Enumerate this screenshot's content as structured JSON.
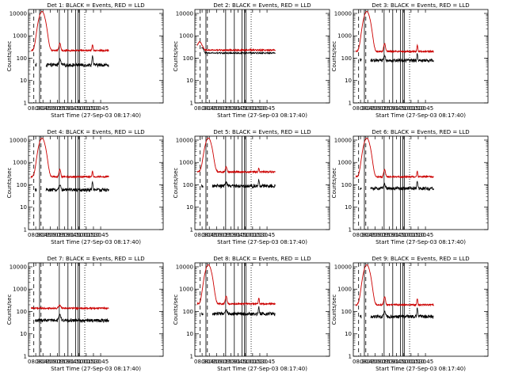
{
  "figure": {
    "background": "#ffffff",
    "events_color": "#000000",
    "lld_color": "#cc0000"
  },
  "chart_data": [
    {
      "type": "line",
      "title": "Det 1: BLACK = Events, RED = LLD",
      "xlabel": "Start Time (27-Sep-03 08:17:40)",
      "ylabel": "Counts/sec",
      "yscale": "log",
      "ylim": [
        1,
        15000
      ],
      "xlim": [
        495,
        775
      ],
      "x_ticks": [
        {
          "v": 510,
          "label": "08:30"
        },
        {
          "v": 525,
          "label": "08:45"
        },
        {
          "v": 540,
          "label": "09:00"
        },
        {
          "v": 555,
          "label": "09:15"
        },
        {
          "v": 570,
          "label": "09:30"
        },
        {
          "v": 585,
          "label": "09:45"
        },
        {
          "v": 600,
          "label": "10:00"
        },
        {
          "v": 615,
          "label": "10:15"
        },
        {
          "v": 630,
          "label": "10:30"
        },
        {
          "v": 645,
          "label": "10:45"
        }
      ],
      "y_ticks": [
        {
          "v": 1,
          "label": "1"
        },
        {
          "v": 10,
          "label": "10"
        },
        {
          "v": 100,
          "label": "100"
        },
        {
          "v": 1000,
          "label": "1000"
        },
        {
          "v": 10000,
          "label": "10000"
        }
      ],
      "flare": true,
      "markers": {
        "S": 506,
        "D": 521,
        "N": 559,
        "E": 629
      },
      "series": [
        {
          "name": "Events",
          "x": [
            503,
            506,
            510,
            514,
            518,
            522,
            526,
            530,
            534,
            538,
            542,
            546,
            550,
            554,
            558,
            562,
            566,
            570,
            574,
            578,
            582,
            586,
            590,
            594,
            598,
            602,
            606,
            610,
            614,
            618,
            622,
            626,
            630,
            634,
            638,
            642,
            646,
            650,
            654,
            658,
            662
          ],
          "y": [
            null,
            null,
            null,
            null,
            null,
            null,
            null,
            null,
            null,
            null,
            null,
            null,
            null,
            null,
            null,
            null,
            null,
            null,
            null,
            null,
            null,
            null,
            null,
            null,
            null,
            null,
            null,
            null,
            null,
            null,
            null,
            null,
            null,
            null,
            null,
            null,
            null,
            null,
            null,
            null,
            null
          ],
          "breaks": [
            506,
            512,
            530,
            600,
            629
          ]
        },
        {
          "name": "LLD",
          "x": [],
          "y": []
        }
      ]
    },
    {
      "type": "line",
      "title": "Det 2: BLACK = Events, RED = LLD",
      "xlabel": "Start Time (27-Sep-03 08:17:40)",
      "ylabel": "Counts/sec",
      "yscale": "log",
      "ylim": [
        1,
        15000
      ],
      "xlim": [
        495,
        775
      ],
      "x_ticks": [
        {
          "v": 510,
          "label": "08:30"
        },
        {
          "v": 525,
          "label": "08:45"
        },
        {
          "v": 540,
          "label": "09:00"
        },
        {
          "v": 555,
          "label": "09:15"
        },
        {
          "v": 570,
          "label": "09:30"
        },
        {
          "v": 585,
          "label": "09:45"
        },
        {
          "v": 600,
          "label": "10:00"
        },
        {
          "v": 615,
          "label": "10:15"
        },
        {
          "v": 630,
          "label": "10:30"
        },
        {
          "v": 645,
          "label": "10:45"
        }
      ],
      "y_ticks": [
        {
          "v": 1,
          "label": "1"
        },
        {
          "v": 10,
          "label": "10"
        },
        {
          "v": 100,
          "label": "100"
        },
        {
          "v": 1000,
          "label": "1000"
        },
        {
          "v": 10000,
          "label": "10000"
        }
      ],
      "flare": false,
      "markers": {
        "S": 506,
        "D": 521,
        "N": 559,
        "E": 629
      },
      "series": [
        {
          "name": "Events",
          "x": [],
          "y": []
        },
        {
          "name": "LLD",
          "x": [],
          "y": []
        }
      ]
    },
    {
      "type": "line",
      "title": "Det 3: BLACK = Events, RED = LLD",
      "xlabel": "Start Time (27-Sep-03 08:17:40)",
      "ylabel": "Counts/sec",
      "yscale": "log",
      "ylim": [
        1,
        15000
      ],
      "xlim": [
        495,
        775
      ],
      "x_ticks": [
        {
          "v": 510,
          "label": "08:30"
        },
        {
          "v": 525,
          "label": "08:45"
        },
        {
          "v": 540,
          "label": "09:00"
        },
        {
          "v": 555,
          "label": "09:15"
        },
        {
          "v": 570,
          "label": "09:30"
        },
        {
          "v": 585,
          "label": "09:45"
        },
        {
          "v": 600,
          "label": "10:00"
        },
        {
          "v": 615,
          "label": "10:15"
        },
        {
          "v": 630,
          "label": "10:30"
        },
        {
          "v": 645,
          "label": "10:45"
        }
      ],
      "y_ticks": [
        {
          "v": 1,
          "label": "1"
        },
        {
          "v": 10,
          "label": "10"
        },
        {
          "v": 100,
          "label": "100"
        },
        {
          "v": 1000,
          "label": "1000"
        },
        {
          "v": 10000,
          "label": "10000"
        }
      ],
      "flare": true,
      "markers": {
        "S": 506,
        "D": 521,
        "N": 559,
        "E": 629
      },
      "series": [
        {
          "name": "Events",
          "x": [],
          "y": []
        },
        {
          "name": "LLD",
          "x": [],
          "y": []
        }
      ]
    },
    {
      "type": "line",
      "title": "Det 4: BLACK = Events, RED = LLD",
      "xlabel": "Start Time (27-Sep-03 08:17:40)",
      "ylabel": "Counts/sec",
      "yscale": "log",
      "ylim": [
        1,
        15000
      ],
      "xlim": [
        495,
        775
      ],
      "x_ticks": [
        {
          "v": 510,
          "label": "08:30"
        },
        {
          "v": 525,
          "label": "08:45"
        },
        {
          "v": 540,
          "label": "09:00"
        },
        {
          "v": 555,
          "label": "09:15"
        },
        {
          "v": 570,
          "label": "09:30"
        },
        {
          "v": 585,
          "label": "09:45"
        },
        {
          "v": 600,
          "label": "10:00"
        },
        {
          "v": 615,
          "label": "10:15"
        },
        {
          "v": 630,
          "label": "10:30"
        },
        {
          "v": 645,
          "label": "10:45"
        }
      ],
      "y_ticks": [
        {
          "v": 1,
          "label": "1"
        },
        {
          "v": 10,
          "label": "10"
        },
        {
          "v": 100,
          "label": "100"
        },
        {
          "v": 1000,
          "label": "1000"
        },
        {
          "v": 10000,
          "label": "10000"
        }
      ],
      "flare": true,
      "markers": {
        "S": 506,
        "D": 521,
        "N": 559,
        "E": 629
      },
      "series": [
        {
          "name": "Events",
          "x": [],
          "y": []
        },
        {
          "name": "LLD",
          "x": [],
          "y": []
        }
      ]
    },
    {
      "type": "line",
      "title": "Det 5: BLACK = Events, RED = LLD",
      "xlabel": "Start Time (27-Sep-03 08:17:40)",
      "ylabel": "Counts/sec",
      "yscale": "log",
      "ylim": [
        1,
        15000
      ],
      "xlim": [
        495,
        775
      ],
      "x_ticks": [
        {
          "v": 510,
          "label": "08:30"
        },
        {
          "v": 525,
          "label": "08:45"
        },
        {
          "v": 540,
          "label": "09:00"
        },
        {
          "v": 555,
          "label": "09:15"
        },
        {
          "v": 570,
          "label": "09:30"
        },
        {
          "v": 585,
          "label": "09:45"
        },
        {
          "v": 600,
          "label": "10:00"
        },
        {
          "v": 615,
          "label": "10:15"
        },
        {
          "v": 630,
          "label": "10:30"
        },
        {
          "v": 645,
          "label": "10:45"
        }
      ],
      "y_ticks": [
        {
          "v": 1,
          "label": "1"
        },
        {
          "v": 10,
          "label": "10"
        },
        {
          "v": 100,
          "label": "100"
        },
        {
          "v": 1000,
          "label": "1000"
        },
        {
          "v": 10000,
          "label": "10000"
        }
      ],
      "flare": true,
      "markers": {
        "S": 506,
        "D": 521,
        "N": 559,
        "E": 629
      },
      "series": [
        {
          "name": "Events",
          "x": [],
          "y": []
        },
        {
          "name": "LLD",
          "x": [],
          "y": []
        }
      ]
    },
    {
      "type": "line",
      "title": "Det 6: BLACK = Events, RED = LLD",
      "xlabel": "Start Time (27-Sep-03 08:17:40)",
      "ylabel": "Counts/sec",
      "yscale": "log",
      "ylim": [
        1,
        15000
      ],
      "xlim": [
        495,
        775
      ],
      "x_ticks": [
        {
          "v": 510,
          "label": "08:30"
        },
        {
          "v": 525,
          "label": "08:45"
        },
        {
          "v": 540,
          "label": "09:00"
        },
        {
          "v": 555,
          "label": "09:15"
        },
        {
          "v": 570,
          "label": "09:30"
        },
        {
          "v": 585,
          "label": "09:45"
        },
        {
          "v": 600,
          "label": "10:00"
        },
        {
          "v": 615,
          "label": "10:15"
        },
        {
          "v": 630,
          "label": "10:30"
        },
        {
          "v": 645,
          "label": "10:45"
        }
      ],
      "y_ticks": [
        {
          "v": 1,
          "label": "1"
        },
        {
          "v": 10,
          "label": "10"
        },
        {
          "v": 100,
          "label": "100"
        },
        {
          "v": 1000,
          "label": "1000"
        },
        {
          "v": 10000,
          "label": "10000"
        }
      ],
      "flare": true,
      "markers": {
        "S": 506,
        "D": 521,
        "N": 559,
        "E": 629
      },
      "series": [
        {
          "name": "Events",
          "x": [],
          "y": []
        },
        {
          "name": "LLD",
          "x": [],
          "y": []
        }
      ]
    },
    {
      "type": "line",
      "title": "Det 7: BLACK = Events, RED = LLD",
      "xlabel": "Start Time (27-Sep-03 08:17:40)",
      "ylabel": "Counts/sec",
      "yscale": "log",
      "ylim": [
        1,
        15000
      ],
      "xlim": [
        495,
        775
      ],
      "x_ticks": [
        {
          "v": 510,
          "label": "08:30"
        },
        {
          "v": 525,
          "label": "08:45"
        },
        {
          "v": 540,
          "label": "09:00"
        },
        {
          "v": 555,
          "label": "09:15"
        },
        {
          "v": 570,
          "label": "09:30"
        },
        {
          "v": 585,
          "label": "09:45"
        },
        {
          "v": 600,
          "label": "10:00"
        },
        {
          "v": 615,
          "label": "10:15"
        },
        {
          "v": 630,
          "label": "10:30"
        },
        {
          "v": 645,
          "label": "10:45"
        }
      ],
      "y_ticks": [
        {
          "v": 1,
          "label": "1"
        },
        {
          "v": 10,
          "label": "10"
        },
        {
          "v": 100,
          "label": "100"
        },
        {
          "v": 1000,
          "label": "1000"
        },
        {
          "v": 10000,
          "label": "10000"
        }
      ],
      "flare": false,
      "markers": {
        "S": 506,
        "D": 521,
        "N": 559,
        "E": 629
      },
      "series": [
        {
          "name": "Events",
          "x": [],
          "y": []
        },
        {
          "name": "LLD",
          "x": [],
          "y": []
        }
      ]
    },
    {
      "type": "line",
      "title": "Det 8: BLACK = Events, RED = LLD",
      "xlabel": "Start Time (27-Sep-03 08:17:40)",
      "ylabel": "Counts/sec",
      "yscale": "log",
      "ylim": [
        1,
        15000
      ],
      "xlim": [
        495,
        775
      ],
      "x_ticks": [
        {
          "v": 510,
          "label": "08:30"
        },
        {
          "v": 525,
          "label": "08:45"
        },
        {
          "v": 540,
          "label": "09:00"
        },
        {
          "v": 555,
          "label": "09:15"
        },
        {
          "v": 570,
          "label": "09:30"
        },
        {
          "v": 585,
          "label": "09:45"
        },
        {
          "v": 600,
          "label": "10:00"
        },
        {
          "v": 615,
          "label": "10:15"
        },
        {
          "v": 630,
          "label": "10:30"
        },
        {
          "v": 645,
          "label": "10:45"
        }
      ],
      "y_ticks": [
        {
          "v": 1,
          "label": "1"
        },
        {
          "v": 10,
          "label": "10"
        },
        {
          "v": 100,
          "label": "100"
        },
        {
          "v": 1000,
          "label": "1000"
        },
        {
          "v": 10000,
          "label": "10000"
        }
      ],
      "flare": true,
      "markers": {
        "S": 506,
        "D": 521,
        "N": 559,
        "E": 629
      },
      "series": [
        {
          "name": "Events",
          "x": [],
          "y": []
        },
        {
          "name": "LLD",
          "x": [],
          "y": []
        }
      ]
    },
    {
      "type": "line",
      "title": "Det 9: BLACK = Events, RED = LLD",
      "xlabel": "Start Time (27-Sep-03 08:17:40)",
      "ylabel": "Counts/sec",
      "yscale": "log",
      "ylim": [
        1,
        15000
      ],
      "xlim": [
        495,
        775
      ],
      "x_ticks": [
        {
          "v": 510,
          "label": "08:30"
        },
        {
          "v": 525,
          "label": "08:45"
        },
        {
          "v": 540,
          "label": "09:00"
        },
        {
          "v": 555,
          "label": "09:15"
        },
        {
          "v": 570,
          "label": "09:30"
        },
        {
          "v": 585,
          "label": "09:45"
        },
        {
          "v": 600,
          "label": "10:00"
        },
        {
          "v": 615,
          "label": "10:15"
        },
        {
          "v": 630,
          "label": "10:30"
        },
        {
          "v": 645,
          "label": "10:45"
        }
      ],
      "y_ticks": [
        {
          "v": 1,
          "label": "1"
        },
        {
          "v": 10,
          "label": "10"
        },
        {
          "v": 100,
          "label": "100"
        },
        {
          "v": 1000,
          "label": "1000"
        },
        {
          "v": 10000,
          "label": "10000"
        }
      ],
      "flare": true,
      "markers": {
        "S": 506,
        "D": 521,
        "N": 559,
        "E": 629
      },
      "series": [
        {
          "name": "Events",
          "x": [],
          "y": []
        },
        {
          "name": "LLD",
          "x": [],
          "y": []
        }
      ]
    }
  ]
}
